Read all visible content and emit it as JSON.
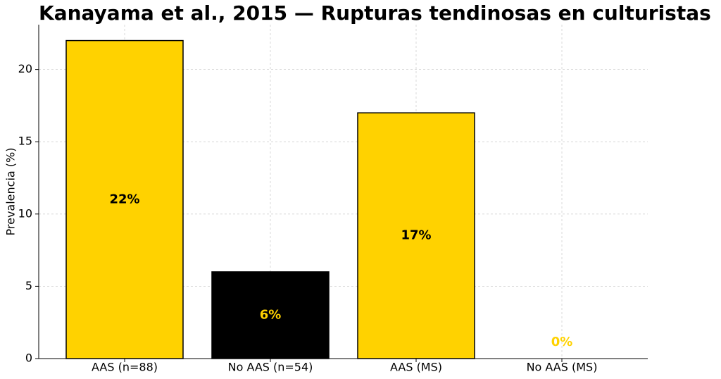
{
  "chart_data": {
    "type": "bar",
    "title": "Kanayama et al., 2015 — Rupturas tendinosas en culturistas",
    "ylabel": "Prevalencia (%)",
    "categories": [
      "AAS (n=88)",
      "No AAS (n=54)",
      "AAS (MS)",
      "No AAS (MS)"
    ],
    "values": [
      22,
      6,
      17,
      0
    ],
    "value_labels": [
      "22%",
      "6%",
      "17%",
      "0%"
    ],
    "colors": [
      "#ffd200",
      "#000000",
      "#ffd200",
      "#000000"
    ],
    "label_colors": [
      "#000000",
      "#ffd200",
      "#000000",
      "#ffd200"
    ],
    "ylim": [
      0,
      23.1
    ],
    "yticks": [
      0,
      5,
      10,
      15,
      20
    ],
    "grid": true
  }
}
